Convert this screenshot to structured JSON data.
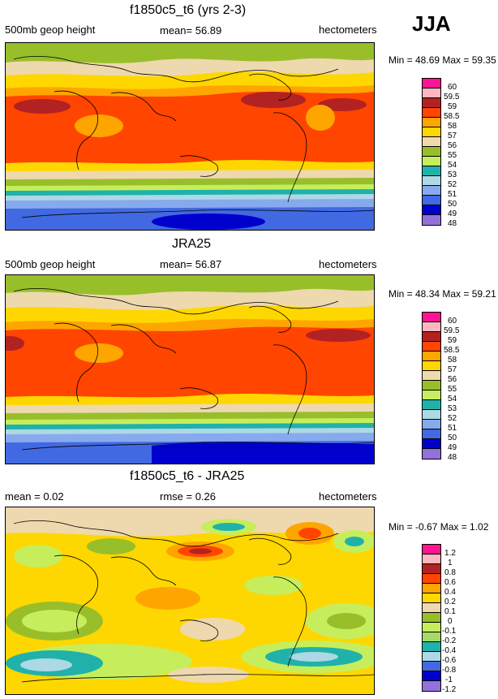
{
  "season": "JJA",
  "chart_data": [
    {
      "type": "heatmap",
      "title": "f1850c5_t6 (yrs 2-3)",
      "left_label": "500mb geop height",
      "center_label": "mean=  56.89",
      "right_label": "hectometers",
      "minmax": "Min =  48.69 Max =  59.35",
      "mean": 56.89,
      "min": 48.69,
      "max": 59.35,
      "levels": [
        "60",
        "59.5",
        "59",
        "58.5",
        "58",
        "57",
        "56",
        "55",
        "54",
        "53",
        "52",
        "51",
        "50",
        "49",
        "48"
      ],
      "colors": [
        "#ff1493",
        "#ffb6c1",
        "#b22222",
        "#ff4500",
        "#ffa500",
        "#ffd700",
        "#eed8ae",
        "#98bf2a",
        "#c6ee5c",
        "#20b2aa",
        "#add8e6",
        "#87aaee",
        "#4169e1",
        "#0000cd",
        "#9370db"
      ]
    },
    {
      "type": "heatmap",
      "title": "JRA25",
      "left_label": "500mb geop height",
      "center_label": "mean=  56.87",
      "right_label": "hectometers",
      "minmax": "Min =  48.34 Max =  59.21",
      "mean": 56.87,
      "min": 48.34,
      "max": 59.21,
      "levels": [
        "60",
        "59.5",
        "59",
        "58.5",
        "58",
        "57",
        "56",
        "55",
        "54",
        "53",
        "52",
        "51",
        "50",
        "49",
        "48"
      ],
      "colors": [
        "#ff1493",
        "#ffb6c1",
        "#b22222",
        "#ff4500",
        "#ffa500",
        "#ffd700",
        "#eed8ae",
        "#98bf2a",
        "#c6ee5c",
        "#20b2aa",
        "#add8e6",
        "#87aaee",
        "#4169e1",
        "#0000cd",
        "#9370db"
      ]
    },
    {
      "type": "heatmap",
      "title": "f1850c5_t6 - JRA25",
      "left_label": "mean =  0.02",
      "center_label": "rmse =  0.26",
      "right_label": "hectometers",
      "minmax": "Min =  -0.67 Max =  1.02",
      "mean": 0.02,
      "rmse": 0.26,
      "min": -0.67,
      "max": 1.02,
      "levels": [
        "1.2",
        "1",
        "0.8",
        "0.6",
        "0.4",
        "0.2",
        "0.1",
        "0",
        "-0.1",
        "-0.2",
        "-0.4",
        "-0.6",
        "-0.8",
        "-1",
        "-1.2"
      ],
      "colors": [
        "#ff1493",
        "#ffb6c1",
        "#b22222",
        "#ff4500",
        "#ffa500",
        "#ffd700",
        "#eed8ae",
        "#98bf2a",
        "#c6ee5c",
        "#a6d96a",
        "#20b2aa",
        "#add8e6",
        "#4169e1",
        "#0000cd",
        "#9370db"
      ]
    }
  ]
}
